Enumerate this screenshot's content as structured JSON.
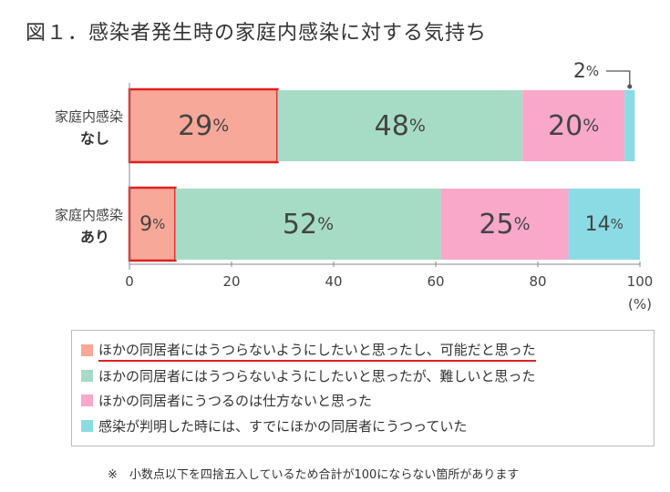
{
  "title": "図１．感染者発生時の家庭内感染に対する気持ち",
  "chart_data": {
    "type": "bar",
    "orientation": "horizontal",
    "stacked": true,
    "categories": [
      {
        "line1": "家庭内感染",
        "line2": "なし"
      },
      {
        "line1": "家庭内感染",
        "line2": "あり"
      }
    ],
    "series": [
      {
        "name": "ほかの同居者にはうつらないようにしたいと思ったし、可能だと思った",
        "color": "#f8a898",
        "values": [
          29,
          9
        ]
      },
      {
        "name": "ほかの同居者にはうつらないようにしたいと思ったが、難しいと思った",
        "color": "#a6dcc6",
        "values": [
          48,
          52
        ]
      },
      {
        "name": "ほかの同居者にうつるのは仕方ないと思った",
        "color": "#f9a8c9",
        "values": [
          20,
          25
        ]
      },
      {
        "name": "感染が判明した時には、すでにほかの同居者にうつっていた",
        "color": "#8adbe4",
        "values": [
          2,
          14
        ]
      }
    ],
    "label_suffix": "%",
    "xlim": [
      0,
      100
    ],
    "xticks": [
      0,
      20,
      40,
      60,
      80,
      100
    ],
    "xunit": "(%)",
    "highlight_series": 0,
    "highlight_color": "#e02020",
    "legend_underline_series": 0
  },
  "note": "※　小数点以下を四捨五入しているため合計が100にならない箇所があります"
}
